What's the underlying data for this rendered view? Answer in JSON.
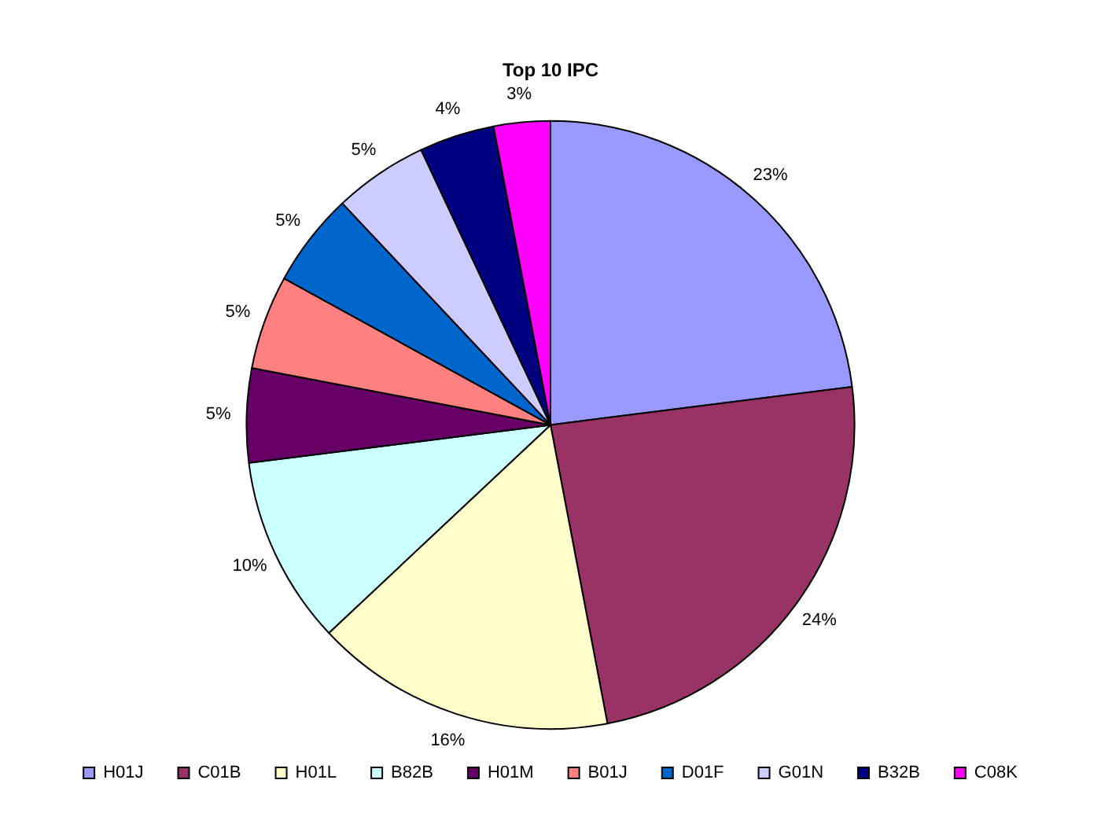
{
  "chart_data": {
    "type": "pie",
    "title": "Top 10 IPC",
    "categories": [
      "H01J",
      "C01B",
      "H01L",
      "B82B",
      "H01M",
      "B01J",
      "D01F",
      "G01N",
      "B32B",
      "C08K"
    ],
    "values": [
      23,
      24,
      16,
      10,
      5,
      5,
      5,
      5,
      4,
      3
    ],
    "colors": [
      "#9999ff",
      "#993366",
      "#ffffcc",
      "#ccffff",
      "#660066",
      "#ff8080",
      "#0066cc",
      "#ccccff",
      "#000080",
      "#ff00ff"
    ],
    "value_labels": [
      "23%",
      "24%",
      "16%",
      "10%",
      "5%",
      "5%",
      "5%",
      "5%",
      "4%",
      "3%"
    ],
    "legend": "bottom"
  }
}
